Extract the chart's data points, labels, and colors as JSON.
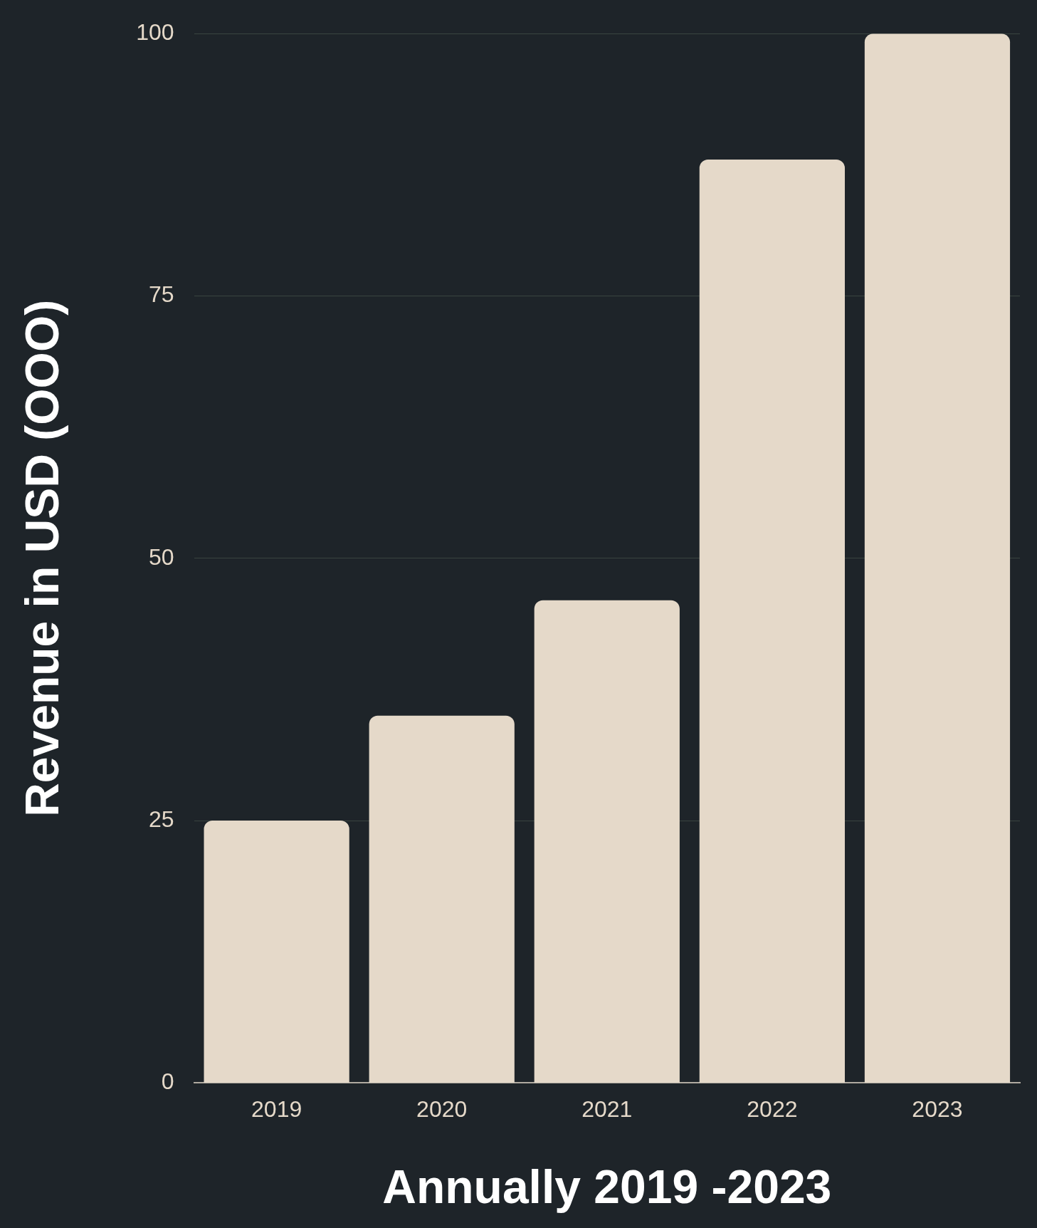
{
  "chart_data": {
    "type": "bar",
    "xlabel": "Annually 2019 -2023",
    "ylabel": "Revenue in USD (OOO)",
    "categories": [
      "2019",
      "2020",
      "2021",
      "2022",
      "2023"
    ],
    "values": [
      25,
      35,
      46,
      88,
      100
    ],
    "color": "#e5d9c9",
    "ylim": [
      0,
      100
    ],
    "yticks": [
      0,
      25,
      50,
      75,
      100
    ],
    "grid": "y",
    "legend": false
  }
}
